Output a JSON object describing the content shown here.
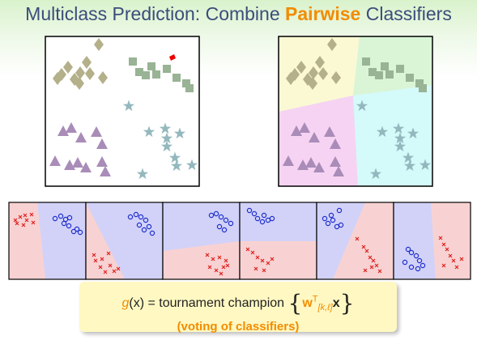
{
  "title": {
    "before": "Multiclass Prediction: Combine ",
    "highlight": "Pairwise",
    "after": " Classifiers"
  },
  "formula": {
    "g": "g",
    "arg": "(x)",
    "equals": " = tournament champion ",
    "open": "{",
    "w": "w",
    "sup": "T",
    "sub": "[k,ℓ]",
    "x": "x",
    "close": "}"
  },
  "voting_label": "(voting of classifiers)",
  "colors": {
    "diamond": "#b3b08a",
    "square": "#99b395",
    "triangle": "#a98cb8",
    "star": "#93b8bd",
    "region_yellow": "#fbf9d3",
    "region_green": "#d9f5d6",
    "region_pink": "#f6d3f2",
    "region_cyan": "#d4fafa",
    "pair_red": "#f8d2d2",
    "pair_blue": "#d2d2f8",
    "cross": "#e02020",
    "circle": "#1e2ecf",
    "stray": "#ee0000"
  }
}
